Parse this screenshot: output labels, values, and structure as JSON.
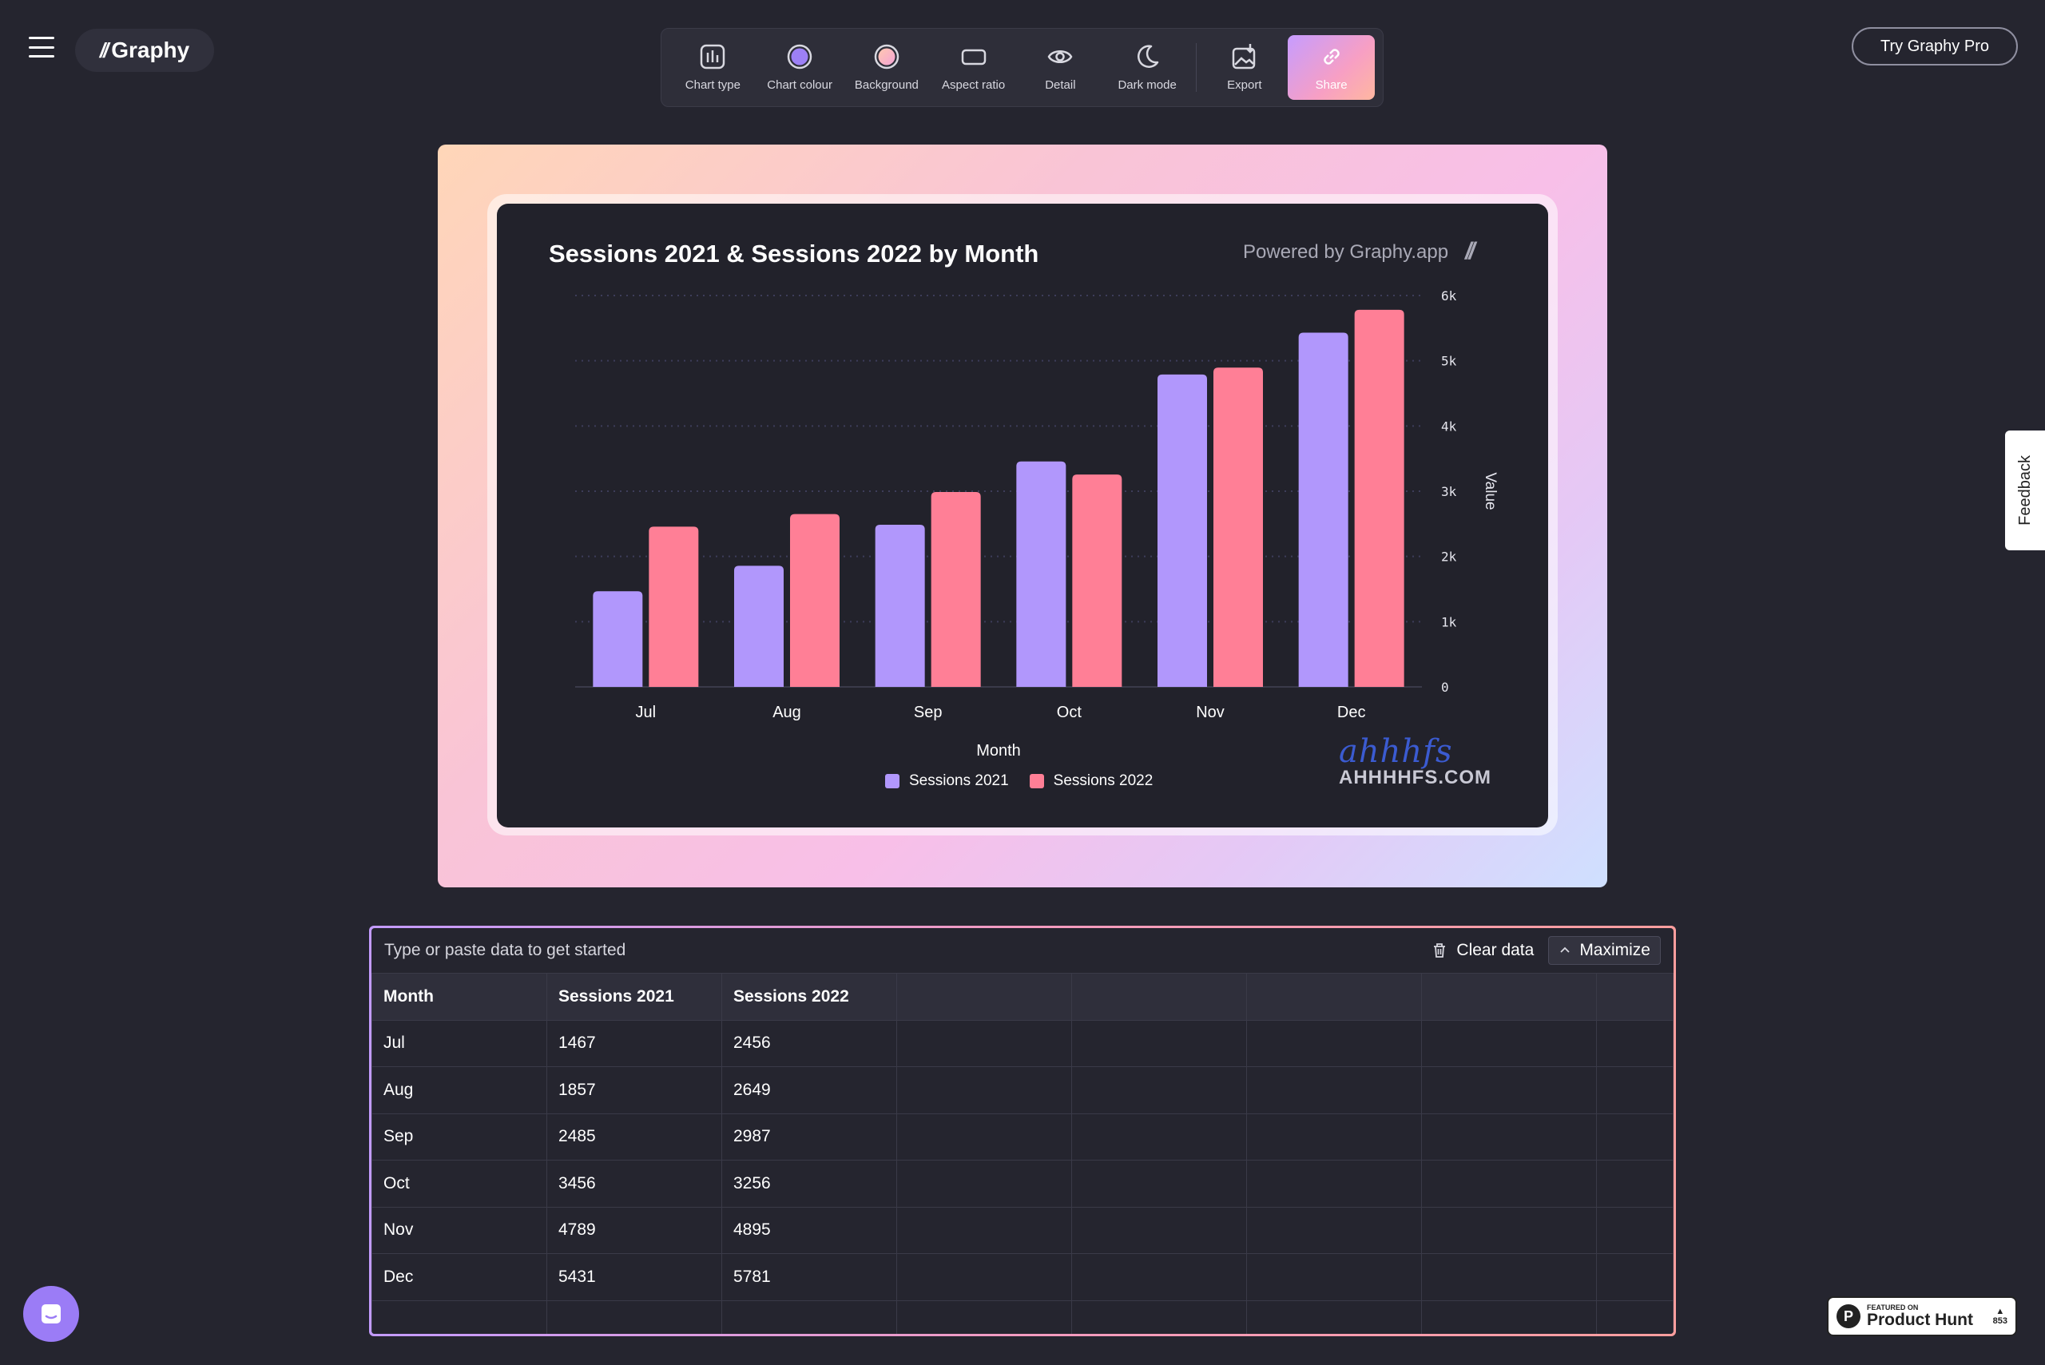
{
  "app": {
    "logo_text": "Graphy",
    "logo_mark": "//"
  },
  "toolbar": {
    "items": [
      {
        "label": "Chart type",
        "icon": "bar-chart-icon"
      },
      {
        "label": "Chart colour",
        "icon": "color-circle-icon"
      },
      {
        "label": "Background",
        "icon": "background-circle-icon"
      },
      {
        "label": "Aspect ratio",
        "icon": "aspect-ratio-icon"
      },
      {
        "label": "Detail",
        "icon": "eye-icon"
      },
      {
        "label": "Dark mode",
        "icon": "moon-icon"
      },
      {
        "label": "Export",
        "icon": "export-image-icon"
      },
      {
        "label": "Share",
        "icon": "link-icon"
      }
    ],
    "active": "Share"
  },
  "pro_button": "Try Graphy Pro",
  "feedback_label": "Feedback",
  "chart_card": {
    "powered_by": "Powered by Graphy.app",
    "powered_mark": "//"
  },
  "watermark": {
    "script": "ahhhfs",
    "domain": "AHHHHFS.COM"
  },
  "colors": {
    "series_2021": "#b197fc",
    "series_2022": "#ff7f96",
    "background": "#25252f",
    "card": "#22222b"
  },
  "chart_data": {
    "type": "bar",
    "title": "Sessions 2021 & Sessions 2022 by Month",
    "xlabel": "Month",
    "ylabel": "Value",
    "categories": [
      "Jul",
      "Aug",
      "Sep",
      "Oct",
      "Nov",
      "Dec"
    ],
    "series": [
      {
        "name": "Sessions 2021",
        "values": [
          1467,
          1857,
          2485,
          3456,
          4789,
          5431
        ],
        "color": "#b197fc"
      },
      {
        "name": "Sessions 2022",
        "values": [
          2456,
          2649,
          2987,
          3256,
          4895,
          5781
        ],
        "color": "#ff7f96"
      }
    ],
    "ylim": [
      0,
      6000
    ],
    "yticks": [
      "0",
      "1k",
      "2k",
      "3k",
      "4k",
      "5k",
      "6k"
    ],
    "ytick_values": [
      0,
      1000,
      2000,
      3000,
      4000,
      5000,
      6000
    ],
    "y_axis_side": "right",
    "grid": true,
    "legend_position": "bottom"
  },
  "data_panel": {
    "hint": "Type or paste data to get started",
    "clear_label": "Clear data",
    "maximize_label": "Maximize",
    "headers": [
      "Month",
      "Sessions 2021",
      "Sessions 2022",
      "",
      "",
      "",
      "",
      ""
    ],
    "rows": [
      [
        "Jul",
        "1467",
        "2456",
        "",
        "",
        "",
        "",
        ""
      ],
      [
        "Aug",
        "1857",
        "2649",
        "",
        "",
        "",
        "",
        ""
      ],
      [
        "Sep",
        "2485",
        "2987",
        "",
        "",
        "",
        "",
        ""
      ],
      [
        "Oct",
        "3456",
        "3256",
        "",
        "",
        "",
        "",
        ""
      ],
      [
        "Nov",
        "4789",
        "4895",
        "",
        "",
        "",
        "",
        ""
      ],
      [
        "Dec",
        "5431",
        "5781",
        "",
        "",
        "",
        "",
        ""
      ],
      [
        "",
        "",
        "",
        "",
        "",
        "",
        "",
        ""
      ]
    ]
  },
  "product_hunt": {
    "small": "FEATURED ON",
    "big": "Product Hunt",
    "votes": "853"
  }
}
